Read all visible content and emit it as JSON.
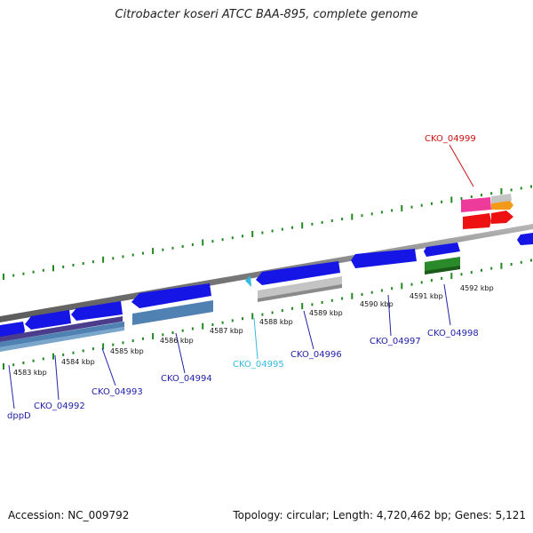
{
  "header": {
    "title": "Citrobacter koseri ATCC BAA-895, complete genome"
  },
  "footer": {
    "accession": "Accession: NC_009792",
    "summary": "Topology: circular; Length: 4,720,462 bp; Genes: 5,121"
  },
  "map": {
    "kbp_labels": [
      "4583 kbp",
      "4584 kbp",
      "4585 kbp",
      "4586 kbp",
      "4587 kbp",
      "4588 kbp",
      "4589 kbp",
      "4590 kbp",
      "4591 kbp",
      "4592 kbp"
    ],
    "gene_labels": [
      "CKO_04999",
      "dppD",
      "CKO_04992",
      "CKO_04993",
      "CKO_04994",
      "CKO_04995",
      "CKO_04996",
      "CKO_04997",
      "CKO_04998"
    ],
    "colors": {
      "forward": "#1515e6",
      "steel": "#4f82b3",
      "purple": "#4b3c8c",
      "gray": "#c4c4c4",
      "green": "#2a8a2a",
      "red": "#ee1111",
      "pink": "#ee3a9a",
      "orange": "#f39a1a",
      "label_blue": "#2222aa",
      "label_red": "#cc1111",
      "label_cyan": "#33bbe0",
      "tick_green": "#228822"
    }
  }
}
